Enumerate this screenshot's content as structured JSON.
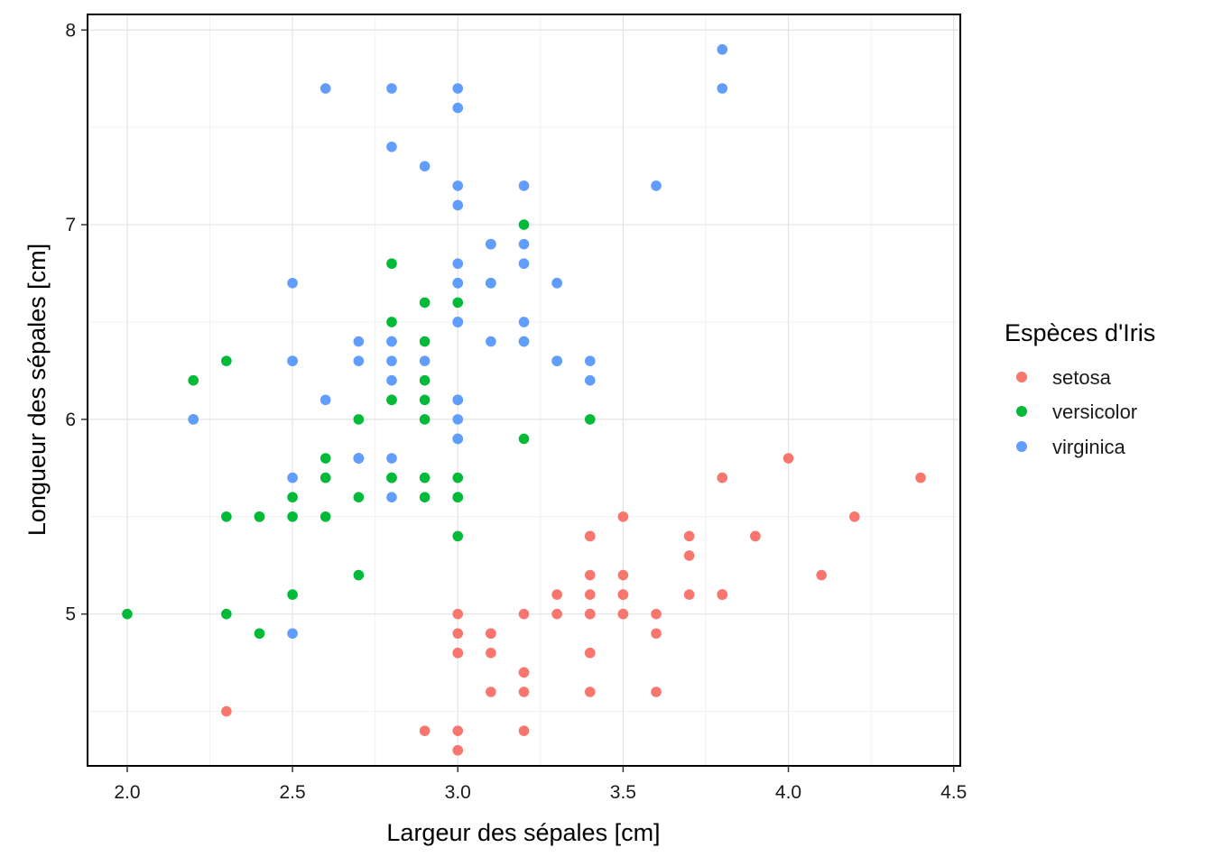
{
  "chart_data": {
    "type": "scatter",
    "xlabel": "Largeur des sépales  [cm]",
    "ylabel": "Longueur des sépales  [cm]",
    "xlim": [
      1.88,
      4.52
    ],
    "ylim": [
      4.22,
      8.08
    ],
    "x_ticks": [
      "2.0",
      "2.5",
      "3.0",
      "3.5",
      "4.0",
      "4.5"
    ],
    "y_ticks": [
      "5",
      "6",
      "7",
      "8"
    ],
    "grid": true,
    "legend": {
      "title": "Espèces d'Iris",
      "position": "right"
    },
    "series": [
      {
        "name": "setosa",
        "color": "#F8766D",
        "points": [
          [
            3.5,
            5.1
          ],
          [
            3.0,
            4.9
          ],
          [
            3.2,
            4.7
          ],
          [
            3.1,
            4.6
          ],
          [
            3.6,
            5.0
          ],
          [
            3.9,
            5.4
          ],
          [
            3.4,
            4.6
          ],
          [
            3.4,
            5.0
          ],
          [
            2.9,
            4.4
          ],
          [
            3.1,
            4.9
          ],
          [
            3.7,
            5.4
          ],
          [
            3.4,
            4.8
          ],
          [
            3.0,
            4.8
          ],
          [
            3.0,
            4.3
          ],
          [
            4.0,
            5.8
          ],
          [
            4.4,
            5.7
          ],
          [
            3.9,
            5.4
          ],
          [
            3.5,
            5.1
          ],
          [
            3.8,
            5.7
          ],
          [
            3.8,
            5.1
          ],
          [
            3.4,
            5.4
          ],
          [
            3.7,
            5.1
          ],
          [
            3.6,
            4.6
          ],
          [
            3.3,
            5.1
          ],
          [
            3.4,
            4.8
          ],
          [
            3.0,
            5.0
          ],
          [
            3.4,
            5.0
          ],
          [
            3.5,
            5.2
          ],
          [
            3.4,
            5.2
          ],
          [
            3.2,
            4.7
          ],
          [
            3.1,
            4.8
          ],
          [
            3.4,
            5.4
          ],
          [
            4.1,
            5.2
          ],
          [
            4.2,
            5.5
          ],
          [
            3.1,
            4.9
          ],
          [
            3.2,
            5.0
          ],
          [
            3.5,
            5.5
          ],
          [
            3.6,
            4.9
          ],
          [
            3.0,
            4.4
          ],
          [
            3.4,
            5.1
          ],
          [
            3.5,
            5.0
          ],
          [
            2.3,
            4.5
          ],
          [
            3.2,
            4.4
          ],
          [
            3.5,
            5.0
          ],
          [
            3.8,
            5.1
          ],
          [
            3.0,
            4.8
          ],
          [
            3.8,
            5.1
          ],
          [
            3.2,
            4.6
          ],
          [
            3.7,
            5.3
          ],
          [
            3.3,
            5.0
          ]
        ]
      },
      {
        "name": "versicolor",
        "color": "#00BA38",
        "points": [
          [
            3.2,
            7.0
          ],
          [
            3.2,
            6.4
          ],
          [
            3.1,
            6.9
          ],
          [
            2.3,
            5.5
          ],
          [
            2.8,
            6.5
          ],
          [
            2.8,
            5.7
          ],
          [
            3.3,
            6.3
          ],
          [
            2.4,
            4.9
          ],
          [
            2.9,
            6.6
          ],
          [
            2.7,
            5.2
          ],
          [
            2.0,
            5.0
          ],
          [
            3.0,
            5.9
          ],
          [
            2.2,
            6.0
          ],
          [
            2.9,
            6.1
          ],
          [
            2.9,
            5.6
          ],
          [
            3.1,
            6.7
          ],
          [
            3.0,
            5.6
          ],
          [
            2.7,
            5.8
          ],
          [
            2.2,
            6.2
          ],
          [
            2.5,
            5.6
          ],
          [
            3.2,
            5.9
          ],
          [
            2.8,
            6.1
          ],
          [
            2.5,
            6.3
          ],
          [
            2.8,
            6.1
          ],
          [
            2.9,
            6.4
          ],
          [
            3.0,
            6.6
          ],
          [
            2.8,
            6.8
          ],
          [
            3.0,
            6.7
          ],
          [
            2.9,
            6.0
          ],
          [
            2.6,
            5.7
          ],
          [
            2.4,
            5.5
          ],
          [
            2.4,
            5.5
          ],
          [
            2.7,
            5.8
          ],
          [
            2.7,
            6.0
          ],
          [
            3.0,
            5.4
          ],
          [
            3.4,
            6.0
          ],
          [
            3.1,
            6.7
          ],
          [
            2.3,
            6.3
          ],
          [
            3.0,
            5.6
          ],
          [
            2.5,
            5.5
          ],
          [
            2.6,
            5.5
          ],
          [
            3.0,
            6.1
          ],
          [
            2.6,
            5.8
          ],
          [
            2.3,
            5.0
          ],
          [
            2.7,
            5.6
          ],
          [
            3.0,
            5.7
          ],
          [
            2.9,
            5.7
          ],
          [
            2.9,
            6.2
          ],
          [
            2.5,
            5.1
          ],
          [
            2.8,
            5.7
          ]
        ]
      },
      {
        "name": "virginica",
        "color": "#619CFF",
        "points": [
          [
            3.3,
            6.3
          ],
          [
            2.7,
            5.8
          ],
          [
            3.0,
            7.1
          ],
          [
            2.9,
            6.3
          ],
          [
            3.0,
            6.5
          ],
          [
            3.0,
            7.6
          ],
          [
            2.5,
            4.9
          ],
          [
            2.9,
            7.3
          ],
          [
            2.5,
            6.7
          ],
          [
            3.6,
            7.2
          ],
          [
            3.2,
            6.5
          ],
          [
            2.7,
            6.4
          ],
          [
            3.0,
            6.8
          ],
          [
            2.5,
            5.7
          ],
          [
            2.8,
            5.8
          ],
          [
            3.2,
            6.4
          ],
          [
            3.0,
            6.5
          ],
          [
            3.8,
            7.7
          ],
          [
            2.6,
            7.7
          ],
          [
            2.2,
            6.0
          ],
          [
            3.2,
            6.9
          ],
          [
            2.8,
            5.6
          ],
          [
            2.8,
            7.7
          ],
          [
            2.7,
            6.3
          ],
          [
            3.3,
            6.7
          ],
          [
            3.2,
            7.2
          ],
          [
            2.8,
            6.2
          ],
          [
            3.0,
            6.1
          ],
          [
            2.8,
            6.4
          ],
          [
            3.0,
            7.2
          ],
          [
            2.8,
            7.4
          ],
          [
            3.8,
            7.9
          ],
          [
            2.8,
            6.4
          ],
          [
            2.8,
            6.3
          ],
          [
            2.6,
            6.1
          ],
          [
            3.0,
            7.7
          ],
          [
            3.4,
            6.3
          ],
          [
            3.1,
            6.4
          ],
          [
            3.0,
            6.0
          ],
          [
            3.1,
            6.9
          ],
          [
            3.1,
            6.7
          ],
          [
            3.1,
            6.9
          ],
          [
            2.7,
            5.8
          ],
          [
            3.2,
            6.8
          ],
          [
            3.3,
            6.7
          ],
          [
            3.0,
            6.7
          ],
          [
            2.5,
            6.3
          ],
          [
            3.0,
            6.5
          ],
          [
            3.4,
            6.2
          ],
          [
            3.0,
            5.9
          ]
        ]
      }
    ]
  }
}
